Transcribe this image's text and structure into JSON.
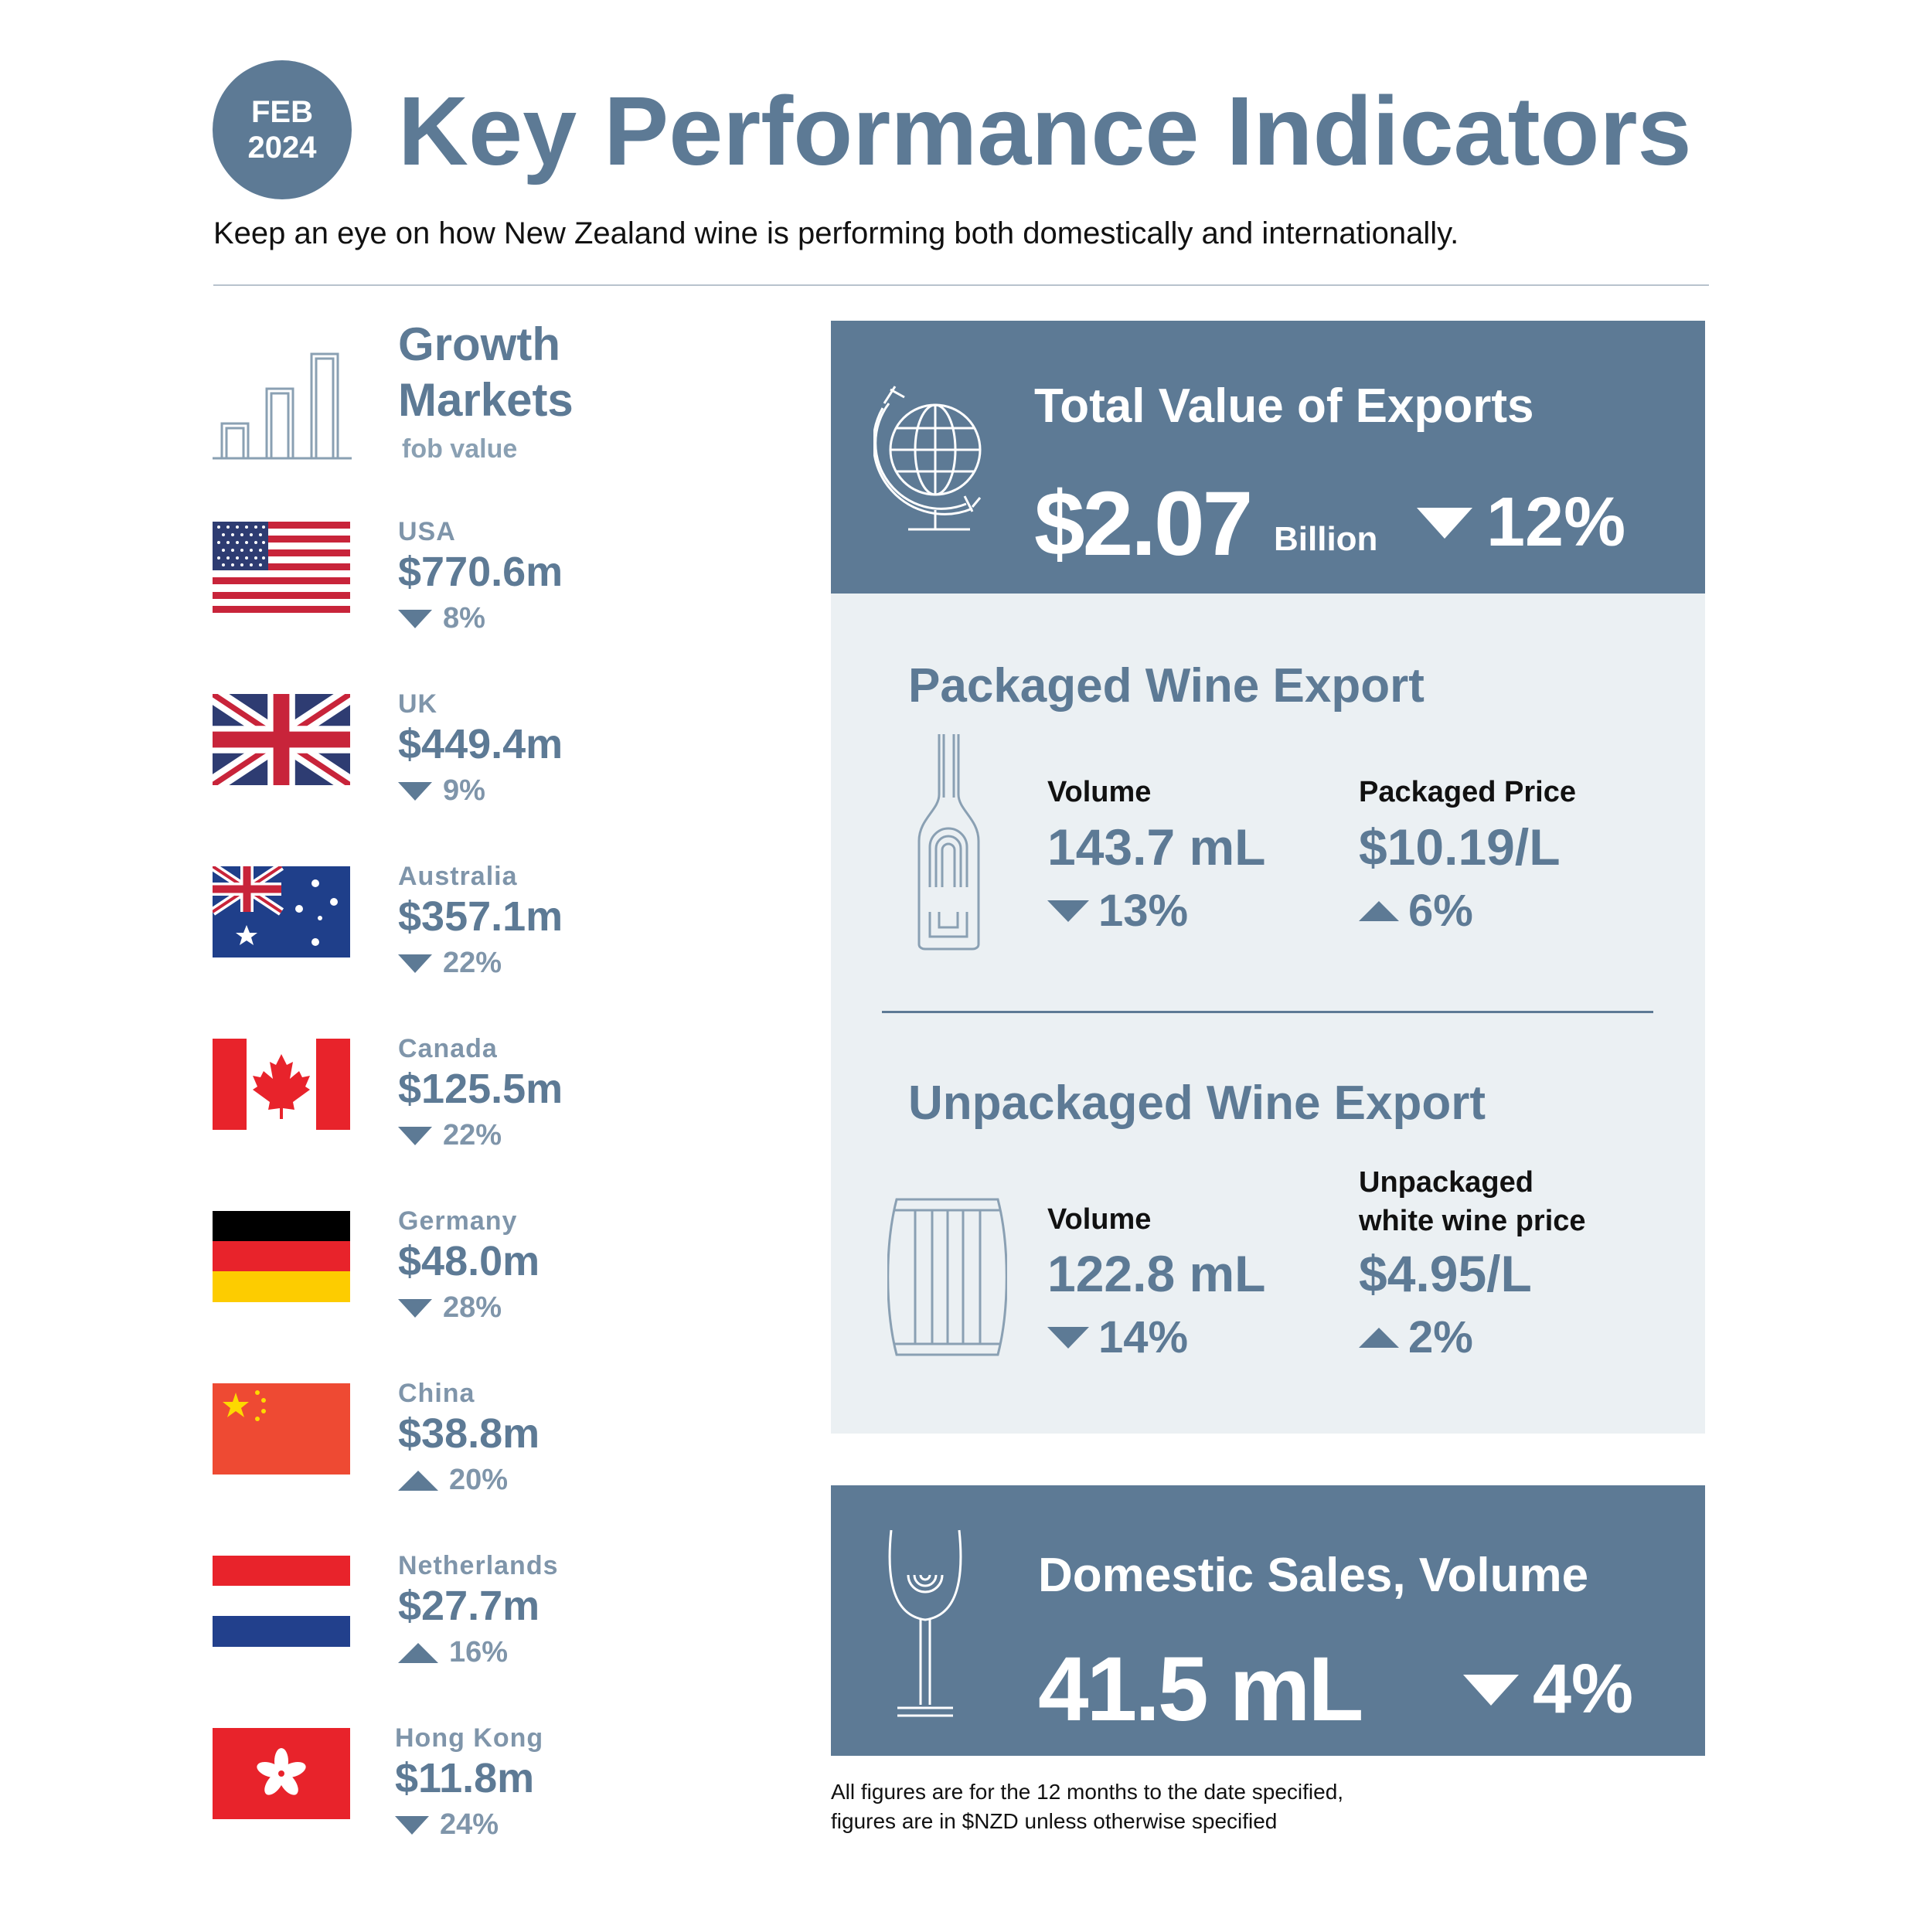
{
  "header": {
    "date_month": "FEB",
    "date_year": "2024",
    "title": "Key Performance Indicators",
    "subtitle": "Keep an eye on how New Zealand wine is performing both domestically and internationally."
  },
  "growth_markets": {
    "title_line1": "Growth",
    "title_line2": "Markets",
    "subtitle": "fob value",
    "markets": [
      {
        "name": "USA",
        "value": "$770.6m",
        "change": "8%",
        "direction": "down",
        "flag": "usa-flag"
      },
      {
        "name": "UK",
        "value": "$449.4m",
        "change": "9%",
        "direction": "down",
        "flag": "uk-flag"
      },
      {
        "name": "Australia",
        "value": "$357.1m",
        "change": "22%",
        "direction": "down",
        "flag": "australia-flag"
      },
      {
        "name": "Canada",
        "value": "$125.5m",
        "change": "22%",
        "direction": "down",
        "flag": "canada-flag"
      },
      {
        "name": "Germany",
        "value": "$48.0m",
        "change": "28%",
        "direction": "down",
        "flag": "germany-flag"
      },
      {
        "name": "China",
        "value": "$38.8m",
        "change": "20%",
        "direction": "up",
        "flag": "china-flag"
      },
      {
        "name": "Netherlands",
        "value": "$27.7m",
        "change": "16%",
        "direction": "up",
        "flag": "netherlands-flag"
      },
      {
        "name": "Hong Kong",
        "value": "$11.8m",
        "change": "24%",
        "direction": "down",
        "flag": "hong-kong-flag"
      }
    ]
  },
  "total_exports": {
    "title": "Total Value of Exports",
    "value": "$2.07",
    "unit": "Billion",
    "change": "12%",
    "direction": "down"
  },
  "packaged": {
    "title": "Packaged Wine Export",
    "volume_label": "Volume",
    "volume_value": "143.7 mL",
    "volume_change": "13%",
    "volume_direction": "down",
    "price_label": "Packaged Price",
    "price_value": "$10.19/L",
    "price_change": "6%",
    "price_direction": "up"
  },
  "unpackaged": {
    "title": "Unpackaged Wine Export",
    "volume_label": "Volume",
    "volume_value": "122.8 mL",
    "volume_change": "14%",
    "volume_direction": "down",
    "price_label_line1": "Unpackaged",
    "price_label_line2": "white wine price",
    "price_value": "$4.95/L",
    "price_change": "2%",
    "price_direction": "up"
  },
  "domestic": {
    "title": "Domestic Sales, Volume",
    "value": "41.5 mL",
    "change": "4%",
    "direction": "down"
  },
  "footnote": {
    "line1": "All figures are for the 12 months to the date specified,",
    "line2": "figures are in $NZD unless otherwise specified"
  },
  "colors": {
    "primary": "#5d7a95",
    "light_panel": "#ebf0f3",
    "muted_text": "#7f95aa"
  }
}
